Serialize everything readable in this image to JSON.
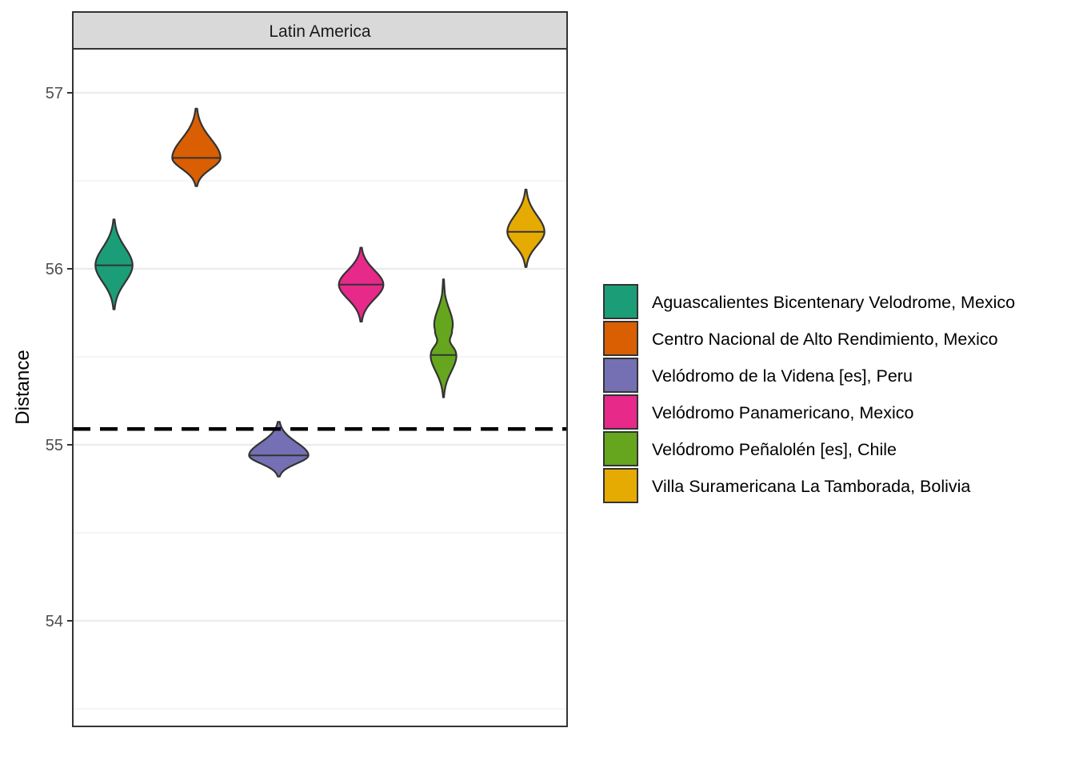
{
  "chart_data": {
    "type": "violin",
    "facet": "Latin America",
    "xlabel": "",
    "ylabel": "Distance",
    "ylim": [
      53.4,
      57.25
    ],
    "yticks": [
      54,
      55,
      56,
      57
    ],
    "grid": true,
    "reference_line": 55.09,
    "legend_position": "right",
    "series": [
      {
        "name": "Aguascalientes Bicentenary Velodrome, Mexico",
        "color": "#1B9E77",
        "median": 56.02,
        "min": 55.77,
        "max": 56.28,
        "peak_width": 0.5
      },
      {
        "name": "Centro Nacional de Alto Rendimiento, Mexico",
        "color": "#D95F02",
        "median": 56.63,
        "min": 56.47,
        "max": 56.91,
        "peak_width": 0.65
      },
      {
        "name": "Velódromo de la Videna [es], Peru",
        "color": "#7570B3",
        "median": 54.94,
        "min": 54.82,
        "max": 55.13,
        "peak_width": 0.8
      },
      {
        "name": "Velódromo Panamericano, Mexico",
        "color": "#E7298A",
        "median": 55.91,
        "min": 55.7,
        "max": 56.12,
        "peak_width": 0.6
      },
      {
        "name": "Velódromo Peñalolén [es], Chile",
        "color": "#66A61E",
        "median": 55.51,
        "min": 55.27,
        "max": 55.94,
        "peak_width": 0.35
      },
      {
        "name": "Villa Suramericana La Tamborada, Bolivia",
        "color": "#E6AB02",
        "median": 56.21,
        "min": 56.01,
        "max": 56.45,
        "peak_width": 0.5
      }
    ]
  }
}
